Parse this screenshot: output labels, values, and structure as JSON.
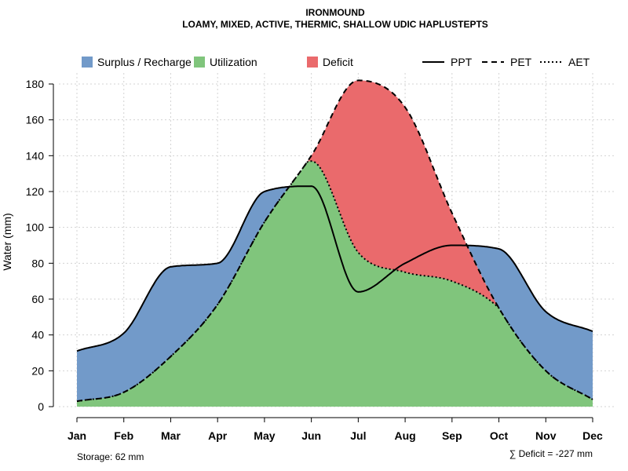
{
  "chart_data": {
    "type": "area",
    "title": "IRONMOUND",
    "subtitle": "LOAMY, MIXED, ACTIVE, THERMIC, SHALLOW UDIC HAPLUSTEPTS",
    "xlabel": "",
    "ylabel": "Water (mm)",
    "ylim": [
      0,
      185
    ],
    "yticks": [
      0,
      20,
      40,
      60,
      80,
      100,
      120,
      140,
      160,
      180
    ],
    "categories": [
      "Jan",
      "Feb",
      "Mar",
      "Apr",
      "May",
      "Jun",
      "Jul",
      "Aug",
      "Sep",
      "Oct",
      "Nov",
      "Dec"
    ],
    "series": [
      {
        "name": "PPT",
        "line_style": "solid",
        "values": [
          31,
          41,
          78,
          80,
          120,
          123,
          64,
          80,
          90,
          88,
          53,
          42
        ]
      },
      {
        "name": "PET",
        "line_style": "dashed",
        "values": [
          3,
          8,
          28,
          57,
          103,
          140,
          182,
          167,
          108,
          55,
          20,
          4
        ]
      },
      {
        "name": "AET",
        "line_style": "dotted",
        "values": [
          3,
          8,
          28,
          57,
          103,
          137,
          86,
          75,
          70,
          55,
          20,
          4
        ]
      }
    ],
    "legend": [
      {
        "label": "Surplus / Recharge",
        "color": "#729ac9"
      },
      {
        "label": "Utilization",
        "color": "#80c57c"
      },
      {
        "label": "Deficit",
        "color": "#ea6a6c"
      },
      {
        "label": "PPT",
        "line_style": "solid"
      },
      {
        "label": "PET",
        "line_style": "dashed"
      },
      {
        "label": "AET",
        "line_style": "dotted"
      }
    ],
    "colors": {
      "surplus": "#729ac9",
      "utilization": "#80c57c",
      "deficit": "#ea6a6c",
      "grid": "#d3d3d3"
    },
    "storage_label": "Storage: 62 mm",
    "deficit_label": "∑ Deficit = -227 mm"
  }
}
